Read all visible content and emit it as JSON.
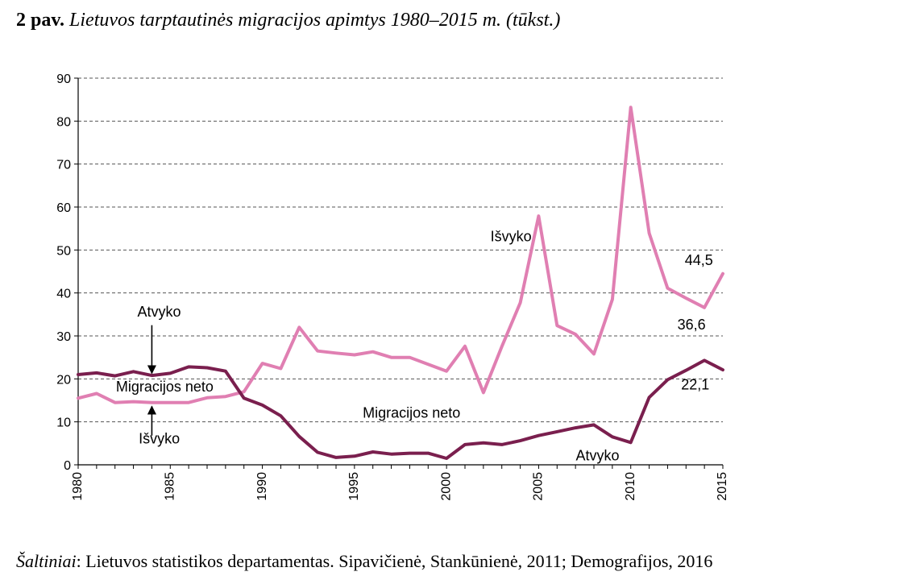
{
  "figure": {
    "number": "2 pav.",
    "title": "Lietuvos tarptautinės migracijos apimtys 1980–2015 m. (tūkst.)"
  },
  "source": {
    "label": "Šaltiniai",
    "text": "Lietuvos statistikos departamentas. Sipavičienė, Stankūnienė, 2011; Demografijos, 2016"
  },
  "chart_data": {
    "type": "line",
    "title": "Lietuvos tarptautinės migracijos apimtys 1980–2015 m. (tūkst.)",
    "xlabel": "",
    "ylabel": "",
    "xlim": [
      1980,
      2015
    ],
    "ylim": [
      0,
      90
    ],
    "x_ticks": [
      1980,
      1985,
      1990,
      1995,
      2000,
      2005,
      2010,
      2015
    ],
    "y_ticks": [
      0,
      10,
      20,
      30,
      40,
      50,
      60,
      70,
      80,
      90
    ],
    "grid": "horizontal dashed",
    "x": [
      1980,
      1981,
      1982,
      1983,
      1984,
      1985,
      1986,
      1987,
      1988,
      1989,
      1990,
      1991,
      1992,
      1993,
      1994,
      1995,
      1996,
      1997,
      1998,
      1999,
      2000,
      2001,
      2002,
      2003,
      2004,
      2005,
      2006,
      2007,
      2008,
      2009,
      2010,
      2011,
      2012,
      2013,
      2014,
      2015
    ],
    "series": [
      {
        "name": "Išvyko",
        "color": "#e07fb2",
        "values": [
          15.5,
          16.6,
          14.5,
          14.7,
          14.5,
          14.5,
          14.5,
          15.6,
          15.9,
          17.0,
          23.6,
          22.4,
          32.0,
          26.5,
          26.0,
          25.6,
          26.3,
          25.0,
          25.0,
          23.4,
          21.8,
          27.6,
          16.8,
          27.5,
          37.7,
          57.9,
          32.4,
          30.4,
          25.8,
          38.5,
          83.2,
          53.9,
          41.1,
          38.8,
          36.6,
          44.5
        ],
        "labels": [
          {
            "text": "Išvyko",
            "x": 2003.5,
            "y": 52
          },
          {
            "text": "Išvyko",
            "x": 1984.4,
            "y": 5
          },
          {
            "text": "44,5",
            "x": 2013.7,
            "y": 46.5
          },
          {
            "text": "36,6",
            "x": 2013.3,
            "y": 31.5
          }
        ]
      },
      {
        "name": "Atvyko",
        "color": "#7a1f4e",
        "values": [
          21.0,
          21.4,
          20.7,
          21.7,
          20.8,
          21.3,
          22.8,
          22.6,
          21.8,
          15.5,
          13.9,
          11.4,
          6.6,
          2.9,
          1.7,
          2.0,
          3.0,
          2.5,
          2.7,
          2.7,
          1.5,
          4.7,
          5.1,
          4.7,
          5.6,
          6.8,
          7.7,
          8.6,
          9.3,
          6.5,
          5.2,
          15.7,
          19.8,
          22.0,
          24.3,
          22.1
        ],
        "labels": [
          {
            "text": "Atvyko",
            "x": 1984.4,
            "y": 34.5
          },
          {
            "text": "Atvyko",
            "x": 2008.2,
            "y": 1
          },
          {
            "text": "22,1",
            "x": 2013.5,
            "y": 17.5
          }
        ]
      }
    ],
    "annotations": [
      {
        "text": "Migracijos neto",
        "x": 1984.7,
        "y": 17.1
      },
      {
        "text": "Migracijos neto",
        "x": 1998.1,
        "y": 11
      }
    ]
  }
}
